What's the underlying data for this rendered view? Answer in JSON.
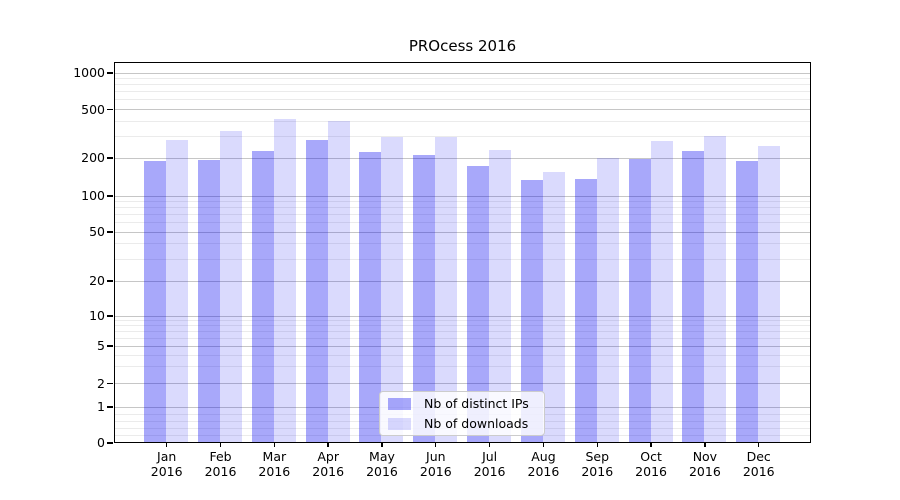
{
  "title": "PROcess 2016",
  "year": "2016",
  "colors": {
    "bar_distinct_ips_fill": "rgba(0,0,240,0.34)",
    "bar_downloads_fill": "rgba(0,0,240,0.145)",
    "bar_distinct_ips_hex": "#aaaaf5",
    "bar_downloads_hex": "#dcdcfa",
    "grid_major": "#c6c6c6",
    "grid_minor": "#ebebeb",
    "axis": "#000000"
  },
  "legend": {
    "items": [
      {
        "label": "Nb of distinct IPs",
        "color_key": "bar_distinct_ips_fill"
      },
      {
        "label": "Nb of downloads",
        "color_key": "bar_downloads_fill"
      }
    ]
  },
  "chart_data": {
    "type": "bar",
    "title": "PROcess 2016",
    "xlabel": "",
    "ylabel": "",
    "yscale": "symlog",
    "grid": true,
    "legend_position": "lower center",
    "categories": [
      "Jan 2016",
      "Feb 2016",
      "Mar 2016",
      "Apr 2016",
      "May 2016",
      "Jun 2016",
      "Jul 2016",
      "Aug 2016",
      "Sep 2016",
      "Oct 2016",
      "Nov 2016",
      "Dec 2016"
    ],
    "month_labels": [
      "Jan",
      "Feb",
      "Mar",
      "Apr",
      "May",
      "Jun",
      "Jul",
      "Aug",
      "Sep",
      "Oct",
      "Nov",
      "Dec"
    ],
    "y_ticks": [
      0,
      1,
      2,
      5,
      10,
      20,
      50,
      100,
      200,
      500,
      1000
    ],
    "ylim": [
      0,
      1230
    ],
    "series": [
      {
        "name": "Nb of distinct IPs",
        "color": "#aaaaf5",
        "values": [
          186,
          189,
          224,
          275,
          220,
          207,
          170,
          132,
          135,
          193,
          224,
          186
        ]
      },
      {
        "name": "Nb of downloads",
        "color": "#dcdcfa",
        "values": [
          275,
          325,
          410,
          395,
          291,
          291,
          228,
          151,
          196,
          270,
          295,
          245
        ]
      }
    ]
  }
}
